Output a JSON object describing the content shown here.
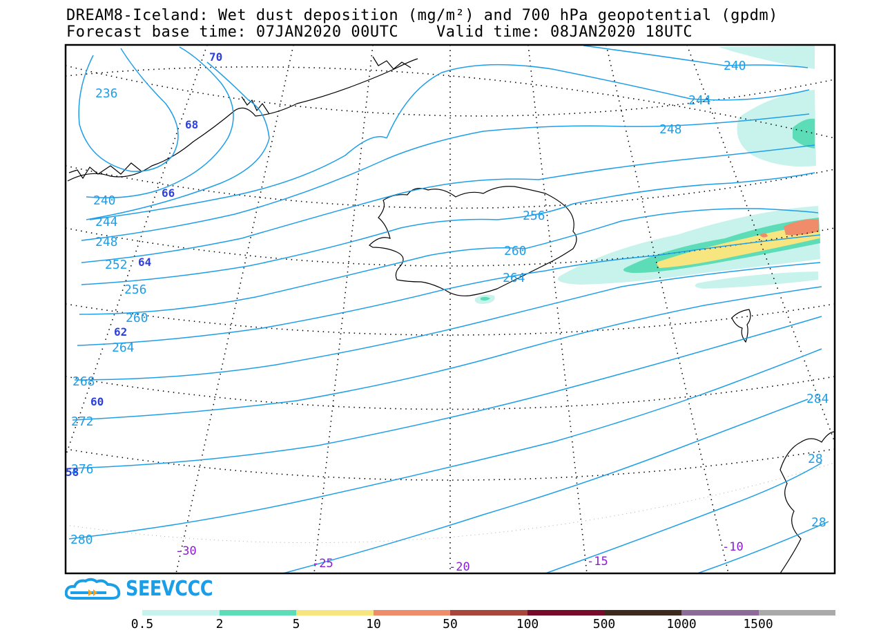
{
  "title_line1": "DREAM8-Iceland: Wet dust deposition (mg/m²) and 700 hPa geopotential (gpdm)",
  "title_line2": "Forecast base time: 07JAN2020 00UTC    Valid time: 08JAN2020 18UTC",
  "brand": "SEEVCCC",
  "colors": {
    "contour": "#1e9ee8",
    "lat_label": "#2b3fe0",
    "lon_label": "#8a1cd6",
    "frame": "#000000"
  },
  "legend": {
    "colors": [
      "#c8f3ec",
      "#5ddcb8",
      "#f7e57f",
      "#f08c6a",
      "#a8463c",
      "#780a2c",
      "#3c2a1e",
      "#8c6a9a",
      "#aaaaaa"
    ],
    "labels": [
      "0.5",
      "2",
      "5",
      "10",
      "50",
      "100",
      "500",
      "1000",
      "1500"
    ]
  },
  "contour_labels": [
    {
      "t": "240"
    },
    {
      "t": "244"
    },
    {
      "t": "248"
    },
    {
      "t": "236"
    },
    {
      "t": "240"
    },
    {
      "t": "244"
    },
    {
      "t": "248"
    },
    {
      "t": "252"
    },
    {
      "t": "256"
    },
    {
      "t": "260"
    },
    {
      "t": "264"
    },
    {
      "t": "268"
    },
    {
      "t": "272"
    },
    {
      "t": "276"
    },
    {
      "t": "280"
    },
    {
      "t": "284"
    },
    {
      "t": "256"
    },
    {
      "t": "260"
    },
    {
      "t": "264"
    },
    {
      "t": "28"
    },
    {
      "t": "28"
    }
  ],
  "lat_labels": [
    "70",
    "68",
    "66",
    "64",
    "62",
    "60",
    "58"
  ],
  "lon_labels": [
    "-30",
    "-25",
    "-20",
    "-15",
    "-10"
  ]
}
